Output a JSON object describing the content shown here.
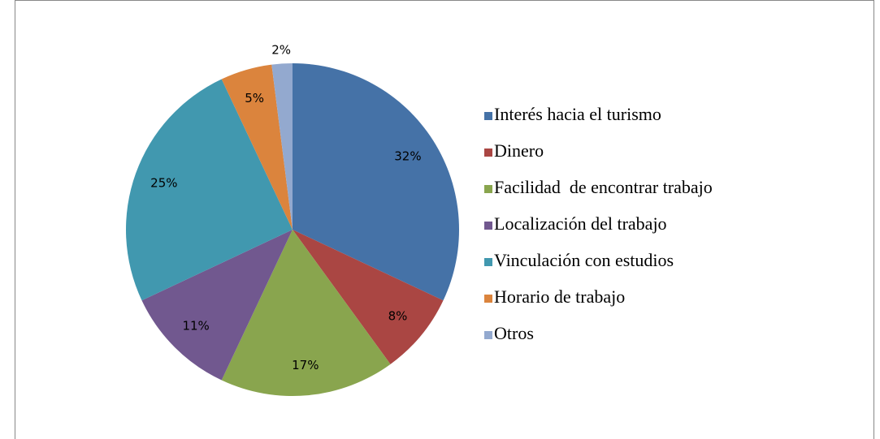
{
  "chart_data": {
    "type": "pie",
    "categories": [
      "Interés hacia el turismo",
      "Dinero",
      "Facilidad  de encontrar trabajo",
      "Localización del trabajo",
      "Vinculación con estudios",
      "Horario de trabajo",
      "Otros"
    ],
    "values": [
      32,
      8,
      17,
      11,
      25,
      5,
      2
    ],
    "value_labels": [
      "32%",
      "8%",
      "17%",
      "11%",
      "25%",
      "5%",
      "2%"
    ],
    "colors": [
      "#4572a7",
      "#aa4643",
      "#89a54e",
      "#71588f",
      "#4198af",
      "#db843d",
      "#93a9cf"
    ],
    "legend": "right"
  }
}
